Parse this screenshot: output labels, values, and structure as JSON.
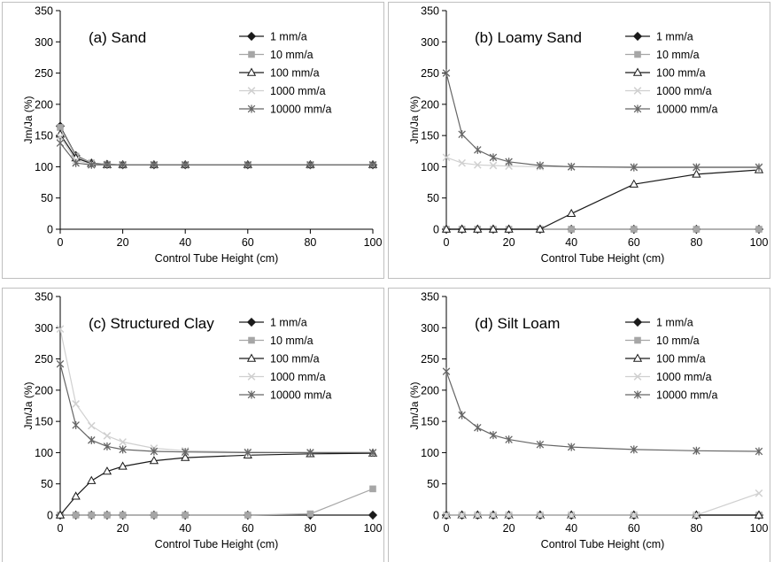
{
  "chart_data": [
    {
      "type": "line",
      "title": "(a) Sand",
      "xlabel": "Control Tube Height (cm)",
      "ylabel": "Jm/Ja (%)",
      "xlim": [
        0,
        100
      ],
      "ylim": [
        0,
        350
      ],
      "xticks": [
        "0",
        "20",
        "40",
        "60",
        "80",
        "100"
      ],
      "yticks": [
        "0",
        "50",
        "100",
        "150",
        "200",
        "250",
        "300",
        "350"
      ],
      "grid": false,
      "legend": "top-right",
      "x": [
        0,
        5,
        10,
        15,
        20,
        30,
        40,
        60,
        80,
        100
      ],
      "series": [
        {
          "name": "1 mm/a",
          "values": [
            165,
            118,
            106,
            104,
            103,
            103,
            103,
            103,
            103,
            103
          ]
        },
        {
          "name": "10 mm/a",
          "values": [
            163,
            117,
            106,
            104,
            103,
            103,
            103,
            103,
            103,
            103
          ]
        },
        {
          "name": "100 mm/a",
          "values": [
            152,
            114,
            105,
            103,
            103,
            103,
            103,
            103,
            103,
            103
          ]
        },
        {
          "name": "1000 mm/a",
          "values": [
            148,
            110,
            104,
            103,
            103,
            103,
            103,
            103,
            103,
            103
          ]
        },
        {
          "name": "10000 mm/a",
          "values": [
            138,
            106,
            103,
            103,
            103,
            103,
            103,
            103,
            103,
            103
          ]
        }
      ]
    },
    {
      "type": "line",
      "title": "(b) Loamy Sand",
      "xlabel": "Control Tube Height (cm)",
      "ylabel": "Jm/Ja (%)",
      "xlim": [
        0,
        100
      ],
      "ylim": [
        0,
        350
      ],
      "xticks": [
        "0",
        "20",
        "40",
        "60",
        "80",
        "100"
      ],
      "yticks": [
        "0",
        "50",
        "100",
        "150",
        "200",
        "250",
        "300",
        "350"
      ],
      "grid": false,
      "legend": "top-right",
      "x": [
        0,
        5,
        10,
        15,
        20,
        30,
        40,
        60,
        80,
        100
      ],
      "series": [
        {
          "name": "1 mm/a",
          "values": [
            0,
            0,
            0,
            0,
            0,
            0,
            0,
            0,
            0,
            0
          ]
        },
        {
          "name": "10 mm/a",
          "values": [
            0,
            0,
            0,
            0,
            0,
            0,
            0,
            0,
            0,
            0
          ]
        },
        {
          "name": "100 mm/a",
          "values": [
            0,
            0,
            0,
            0,
            0,
            0,
            25,
            72,
            88,
            95
          ]
        },
        {
          "name": "1000 mm/a",
          "values": [
            115,
            106,
            103,
            102,
            101,
            100,
            100,
            100,
            100,
            100
          ]
        },
        {
          "name": "10000 mm/a",
          "values": [
            250,
            152,
            127,
            115,
            108,
            102,
            100,
            99,
            99,
            99
          ]
        }
      ]
    },
    {
      "type": "line",
      "title": "(c) Structured Clay",
      "xlabel": "Control Tube Height (cm)",
      "ylabel": "Jm/Ja (%)",
      "xlim": [
        0,
        100
      ],
      "ylim": [
        0,
        350
      ],
      "xticks": [
        "0",
        "20",
        "40",
        "60",
        "80",
        "100"
      ],
      "yticks": [
        "0",
        "50",
        "100",
        "150",
        "200",
        "250",
        "300",
        "350"
      ],
      "grid": false,
      "legend": "top-right",
      "x": [
        0,
        5,
        10,
        15,
        20,
        30,
        40,
        60,
        80,
        100
      ],
      "series": [
        {
          "name": "1 mm/a",
          "values": [
            0,
            0,
            0,
            0,
            0,
            0,
            0,
            0,
            0,
            0
          ]
        },
        {
          "name": "10 mm/a",
          "values": [
            0,
            0,
            0,
            0,
            0,
            0,
            0,
            0,
            2,
            42
          ]
        },
        {
          "name": "100 mm/a",
          "values": [
            0,
            30,
            55,
            70,
            78,
            87,
            92,
            96,
            98,
            99
          ]
        },
        {
          "name": "1000 mm/a",
          "values": [
            298,
            178,
            143,
            127,
            117,
            107,
            103,
            101,
            100,
            100
          ]
        },
        {
          "name": "10000 mm/a",
          "values": [
            242,
            144,
            120,
            110,
            105,
            102,
            101,
            100,
            100,
            100
          ]
        }
      ]
    },
    {
      "type": "line",
      "title": "(d) Silt Loam",
      "xlabel": "Control Tube Height (cm)",
      "ylabel": "Jm/Ja (%)",
      "xlim": [
        0,
        100
      ],
      "ylim": [
        0,
        350
      ],
      "xticks": [
        "0",
        "20",
        "40",
        "60",
        "80",
        "100"
      ],
      "yticks": [
        "0",
        "50",
        "100",
        "150",
        "200",
        "250",
        "300",
        "350"
      ],
      "grid": false,
      "legend": "top-right",
      "x": [
        0,
        5,
        10,
        15,
        20,
        30,
        40,
        60,
        80,
        100
      ],
      "series": [
        {
          "name": "1 mm/a",
          "values": [
            0,
            0,
            0,
            0,
            0,
            0,
            0,
            0,
            0,
            0
          ]
        },
        {
          "name": "10 mm/a",
          "values": [
            0,
            0,
            0,
            0,
            0,
            0,
            0,
            0,
            0,
            0
          ]
        },
        {
          "name": "100 mm/a",
          "values": [
            0,
            0,
            0,
            0,
            0,
            0,
            0,
            0,
            0,
            0
          ]
        },
        {
          "name": "1000 mm/a",
          "values": [
            0,
            0,
            0,
            0,
            0,
            0,
            0,
            0,
            0,
            35
          ]
        },
        {
          "name": "10000 mm/a",
          "values": [
            230,
            160,
            140,
            128,
            121,
            113,
            109,
            105,
            103,
            102
          ]
        }
      ]
    }
  ],
  "series_styles": [
    {
      "marker": "diamond",
      "color": "#1a1a1a"
    },
    {
      "marker": "square",
      "color": "#a6a6a6"
    },
    {
      "marker": "triangle",
      "color": "#1a1a1a"
    },
    {
      "marker": "x",
      "color": "#d0d0d0"
    },
    {
      "marker": "star",
      "color": "#666666"
    }
  ],
  "colors": {
    "axis": "#000000",
    "frame": "#bfbfbf",
    "background": "#ffffff"
  }
}
